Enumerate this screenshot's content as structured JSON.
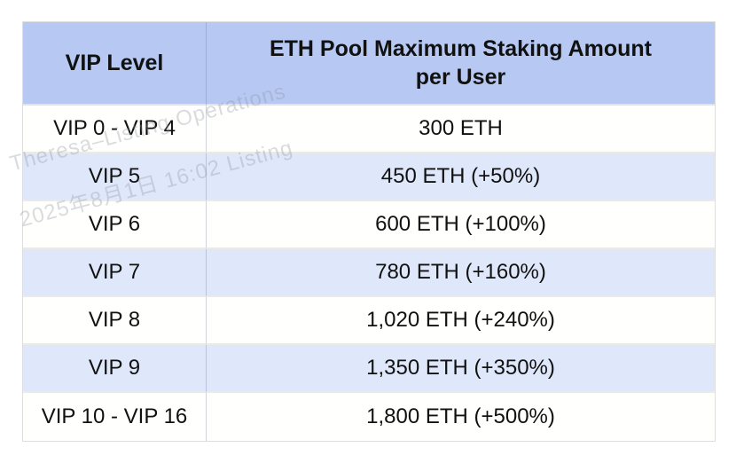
{
  "watermark": {
    "line1": "Theresa–Listing Operations",
    "line2": "2025年8月1日 16:02 Listing"
  },
  "table": {
    "headers": [
      "VIP Level",
      "ETH Pool Maximum Staking Amount per User"
    ],
    "rows": [
      {
        "level": "VIP 0 - VIP 4",
        "amount": "300 ETH"
      },
      {
        "level": "VIP 5",
        "amount": "450 ETH (+50%)"
      },
      {
        "level": "VIP 6",
        "amount": "600 ETH (+100%)"
      },
      {
        "level": "VIP 7",
        "amount": "780 ETH (+160%)"
      },
      {
        "level": "VIP 8",
        "amount": "1,020 ETH (+240%)"
      },
      {
        "level": "VIP 9",
        "amount": "1,350 ETH (+350%)"
      },
      {
        "level": "VIP 10 - VIP 16",
        "amount": "1,800 ETH (+500%)"
      }
    ],
    "colors": {
      "header_bg": "#b7c9f3",
      "alt_row_bg": "#dfe8fb",
      "row_bg": "#fffffe",
      "text": "#111111",
      "row_border": "#eceae5",
      "column_divider": "#8f9ab4"
    }
  }
}
